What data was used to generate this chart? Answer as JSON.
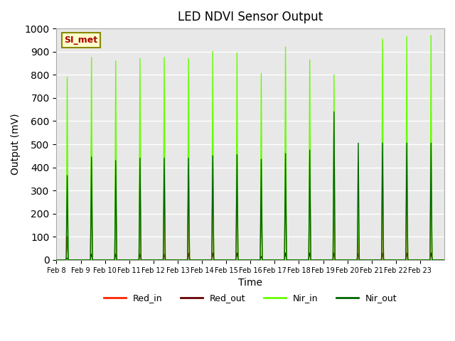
{
  "title": "LED NDVI Sensor Output",
  "xlabel": "Time",
  "ylabel": "Output (mV)",
  "ylim": [
    0,
    1000
  ],
  "background_color": "#ffffff",
  "plot_bg_color": "#e8e8e8",
  "grid_color": "#ffffff",
  "annotation_text": "SI_met",
  "annotation_bg": "#ffffcc",
  "annotation_border": "#888800",
  "annotation_text_color": "#aa0000",
  "x_tick_labels": [
    "Feb 8",
    "Feb 9",
    "Feb 10",
    "Feb 11",
    "Feb 12",
    "Feb 13",
    "Feb 14",
    "Feb 15",
    "Feb 16",
    "Feb 17",
    "Feb 18",
    "Feb 19",
    "Feb 20",
    "Feb 21",
    "Feb 22",
    "Feb 23"
  ],
  "line_colors": {
    "Red_in": "#ff2200",
    "Red_out": "#660000",
    "Nir_in": "#66ff00",
    "Nir_out": "#006600"
  },
  "line_widths": {
    "Red_in": 1.0,
    "Red_out": 1.0,
    "Nir_in": 1.0,
    "Nir_out": 1.0
  },
  "nir_in_peaks": [
    790,
    875,
    860,
    870,
    875,
    870,
    900,
    895,
    805,
    920,
    865,
    800,
    240,
    955,
    965,
    970
  ],
  "nir_out_peaks": [
    365,
    445,
    430,
    440,
    440,
    440,
    450,
    455,
    435,
    460,
    475,
    640,
    505,
    505,
    505,
    505
  ],
  "red_in_peaks": [
    100,
    385,
    375,
    395,
    385,
    400,
    435,
    440,
    300,
    435,
    430,
    290,
    110,
    430,
    430,
    435
  ],
  "red_out_peaks": [
    8,
    25,
    25,
    25,
    25,
    30,
    30,
    30,
    15,
    30,
    30,
    30,
    30,
    30,
    30,
    30
  ],
  "legend_ncol": 4,
  "n_days": 16,
  "pts_per_day": 144
}
